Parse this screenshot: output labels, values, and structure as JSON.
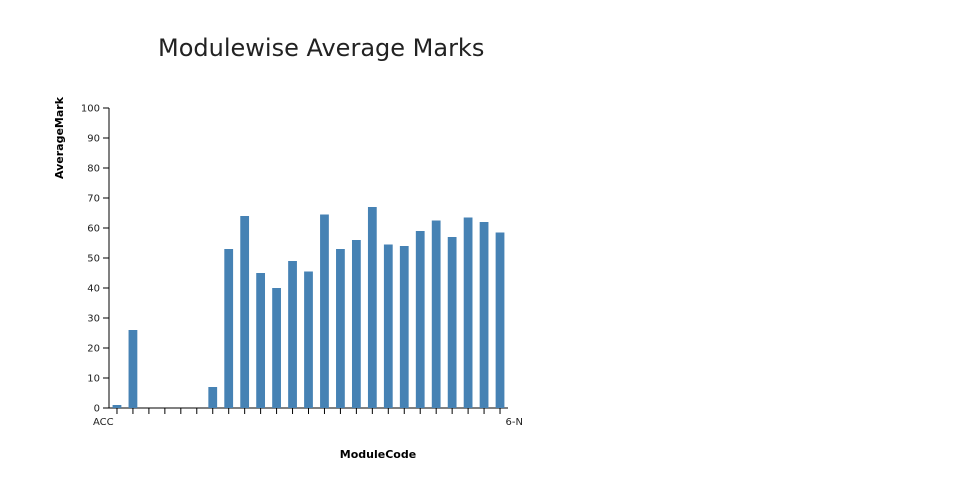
{
  "chart_data": {
    "type": "bar",
    "title": "Modulewise Average Marks",
    "xlabel": "ModuleCode",
    "ylabel": "AverageMark",
    "ylim": [
      0,
      100
    ],
    "yticks": [
      0,
      10,
      20,
      30,
      40,
      50,
      60,
      70,
      80,
      90,
      100
    ],
    "first_category_label": "ACC",
    "last_category_label": "6-N",
    "values": [
      1,
      26,
      0,
      0,
      0,
      0,
      7,
      53,
      64,
      45,
      40,
      49,
      45.5,
      64.5,
      53,
      56,
      67,
      54.5,
      54,
      59,
      62.5,
      57,
      63.5,
      62,
      58.5
    ],
    "bar_color": "#4682b4",
    "grid": false
  }
}
